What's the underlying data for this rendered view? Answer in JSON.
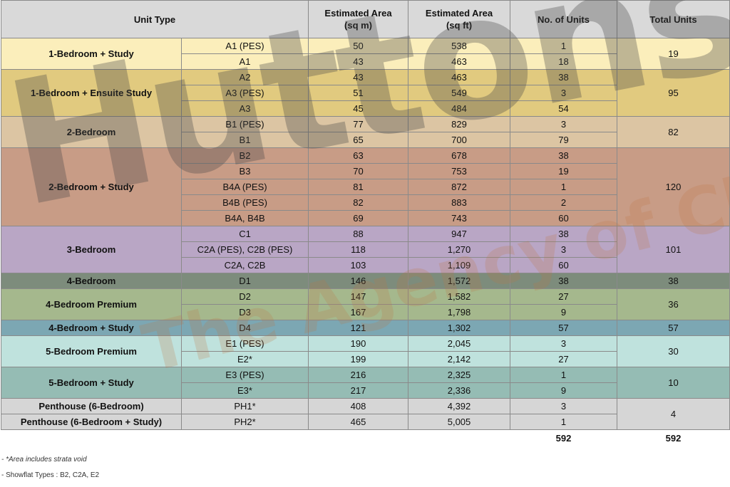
{
  "headers": [
    "Unit Type",
    "Estimated Area\n(sq m)",
    "Estimated  Area\n(sq ft)",
    "No. of Units",
    "Total Units"
  ],
  "groups": [
    {
      "name": "1-Bedroom + Study",
      "total": "19",
      "rows": [
        {
          "type": "A1 (PES)",
          "sqm": "50",
          "sqft": "538",
          "units": "1"
        },
        {
          "type": "A1",
          "sqm": "43",
          "sqft": "463",
          "units": "18"
        }
      ]
    },
    {
      "name": "1-Bedroom + Ensuite Study",
      "total": "95",
      "rows": [
        {
          "type": "A2",
          "sqm": "43",
          "sqft": "463",
          "units": "38"
        },
        {
          "type": "A3 (PES)",
          "sqm": "51",
          "sqft": "549",
          "units": "3"
        },
        {
          "type": "A3",
          "sqm": "45",
          "sqft": "484",
          "units": "54"
        }
      ]
    },
    {
      "name": "2-Bedroom",
      "total": "82",
      "rows": [
        {
          "type": "B1 (PES)",
          "sqm": "77",
          "sqft": "829",
          "units": "3"
        },
        {
          "type": "B1",
          "sqm": "65",
          "sqft": "700",
          "units": "79"
        }
      ]
    },
    {
      "name": "2-Bedroom + Study",
      "total": "120",
      "rows": [
        {
          "type": "B2",
          "sqm": "63",
          "sqft": "678",
          "units": "38"
        },
        {
          "type": "B3",
          "sqm": "70",
          "sqft": "753",
          "units": "19"
        },
        {
          "type": "B4A (PES)",
          "sqm": "81",
          "sqft": "872",
          "units": "1"
        },
        {
          "type": "B4B (PES)",
          "sqm": "82",
          "sqft": "883",
          "units": "2"
        },
        {
          "type": "B4A, B4B",
          "sqm": "69",
          "sqft": "743",
          "units": "60"
        }
      ]
    },
    {
      "name": "3-Bedroom",
      "total": "101",
      "rows": [
        {
          "type": "C1",
          "sqm": "88",
          "sqft": "947",
          "units": "38"
        },
        {
          "type": "C2A (PES), C2B (PES)",
          "sqm": "118",
          "sqft": "1,270",
          "units": "3"
        },
        {
          "type": "C2A, C2B",
          "sqm": "103",
          "sqft": "1,109",
          "units": "60"
        }
      ]
    },
    {
      "name": "4-Bedroom",
      "total": "38",
      "rows": [
        {
          "type": "D1",
          "sqm": "146",
          "sqft": "1,572",
          "units": "38"
        }
      ]
    },
    {
      "name": "4-Bedroom Premium",
      "total": "36",
      "rows": [
        {
          "type": "D2",
          "sqm": "147",
          "sqft": "1,582",
          "units": "27"
        },
        {
          "type": "D3",
          "sqm": "167",
          "sqft": "1,798",
          "units": "9"
        }
      ]
    },
    {
      "name": "4-Bedroom + Study",
      "total": "57",
      "rows": [
        {
          "type": "D4",
          "sqm": "121",
          "sqft": "1,302",
          "units": "57"
        }
      ]
    },
    {
      "name": "5-Bedroom Premium",
      "total": "30",
      "rows": [
        {
          "type": "E1 (PES)",
          "sqm": "190",
          "sqft": "2,045",
          "units": "3"
        },
        {
          "type": "E2*",
          "sqm": "199",
          "sqft": "2,142",
          "units": "27"
        }
      ]
    },
    {
      "name": "5-Bedroom + Study",
      "total": "10",
      "rows": [
        {
          "type": "E3 (PES)",
          "sqm": "216",
          "sqft": "2,325",
          "units": "1"
        },
        {
          "type": "E3*",
          "sqm": "217",
          "sqft": "2,336",
          "units": "9"
        }
      ]
    },
    {
      "names": [
        "Penthouse (6-Bedroom)",
        "Penthouse (6-Bedroom + Study)"
      ],
      "total": "4",
      "rows": [
        {
          "type": "PH1*",
          "sqm": "408",
          "sqft": "4,392",
          "units": "3"
        },
        {
          "type": "PH2*",
          "sqm": "465",
          "sqft": "5,005",
          "units": "1"
        }
      ]
    }
  ],
  "totals": {
    "units": "592",
    "total_units": "592"
  },
  "footnotes": [
    "- *Area includes strata void",
    "- Showflat Types : B2, C2A, E2"
  ],
  "watermark": {
    "main": "Huttons",
    "sub": "The Agency of Choice"
  }
}
